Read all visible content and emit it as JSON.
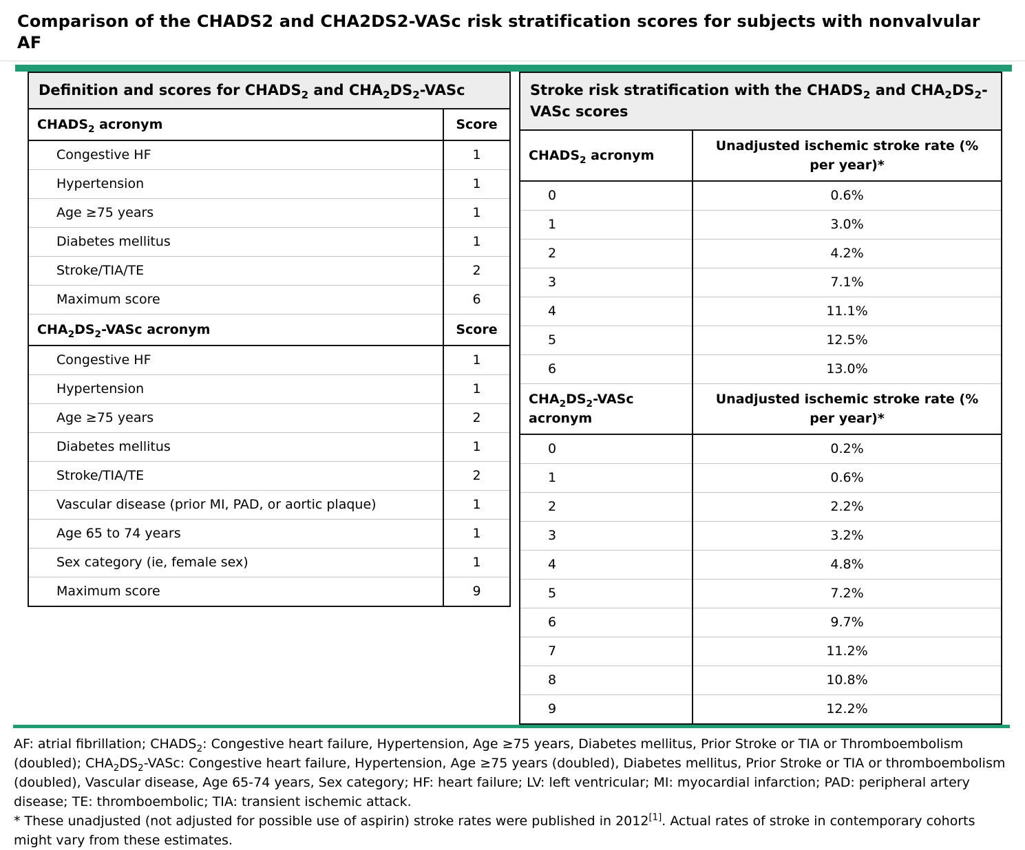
{
  "page": {
    "title": "Comparison of the CHADS2 and CHA2DS2-VASc risk stratification scores for subjects with nonvalvular AF"
  },
  "definition_table": {
    "title": "Definition and scores for CHADS~2~ and CHA~2~DS~2~-VASc",
    "sections": [
      {
        "header_col1": "CHADS~2~ acronym",
        "header_col2": "Score",
        "rows": [
          {
            "label": "Congestive HF",
            "value": "1"
          },
          {
            "label": "Hypertension",
            "value": "1"
          },
          {
            "label": "Age ≥75 years",
            "value": "1"
          },
          {
            "label": "Diabetes mellitus",
            "value": "1"
          },
          {
            "label": "Stroke/TIA/TE",
            "value": "2"
          },
          {
            "label": "Maximum score",
            "value": "6"
          }
        ]
      },
      {
        "header_col1": "CHA~2~DS~2~-VASc acronym",
        "header_col2": "Score",
        "rows": [
          {
            "label": "Congestive HF",
            "value": "1"
          },
          {
            "label": "Hypertension",
            "value": "1"
          },
          {
            "label": "Age ≥75 years",
            "value": "2"
          },
          {
            "label": "Diabetes mellitus",
            "value": "1"
          },
          {
            "label": "Stroke/TIA/TE",
            "value": "2"
          },
          {
            "label": "Vascular disease (prior MI, PAD, or aortic plaque)",
            "value": "1"
          },
          {
            "label": "Age 65 to 74 years",
            "value": "1"
          },
          {
            "label": "Sex category (ie, female sex)",
            "value": "1"
          },
          {
            "label": "Maximum score",
            "value": "9"
          }
        ]
      }
    ]
  },
  "risk_table": {
    "title": "Stroke risk stratification with the CHADS~2~ and CHA~2~DS~2~-VASc scores",
    "sections": [
      {
        "header_col1": "CHADS~2~ acronym",
        "header_col2": "Unadjusted ischemic stroke rate (% per year)*",
        "rows": [
          {
            "label": "0",
            "value": "0.6%"
          },
          {
            "label": "1",
            "value": "3.0%"
          },
          {
            "label": "2",
            "value": "4.2%"
          },
          {
            "label": "3",
            "value": "7.1%"
          },
          {
            "label": "4",
            "value": "11.1%"
          },
          {
            "label": "5",
            "value": "12.5%"
          },
          {
            "label": "6",
            "value": "13.0%"
          }
        ]
      },
      {
        "header_col1": "CHA~2~DS~2~-VASc acronym",
        "header_col2": "Unadjusted ischemic stroke rate (% per year)*",
        "rows": [
          {
            "label": "0",
            "value": "0.2%"
          },
          {
            "label": "1",
            "value": "0.6%"
          },
          {
            "label": "2",
            "value": "2.2%"
          },
          {
            "label": "3",
            "value": "3.2%"
          },
          {
            "label": "4",
            "value": "4.8%"
          },
          {
            "label": "5",
            "value": "7.2%"
          },
          {
            "label": "6",
            "value": "9.7%"
          },
          {
            "label": "7",
            "value": "11.2%"
          },
          {
            "label": "8",
            "value": "10.8%"
          },
          {
            "label": "9",
            "value": "12.2%"
          }
        ]
      }
    ]
  },
  "footnotes": {
    "abbreviations": "AF: atrial fibrillation; CHADS~2~: Congestive heart failure, Hypertension, Age ≥75 years, Diabetes mellitus, Prior Stroke or TIA or Thromboembolism (doubled); CHA~2~DS~2~-VASc: Congestive heart failure, Hypertension, Age ≥75 years (doubled), Diabetes mellitus, Prior Stroke or TIA or thromboembolism (doubled), Vascular disease, Age 65-74 years, Sex category; HF: heart failure; LV: left ventricular; MI: myocardial infarction; PAD: peripheral artery disease; TE: thromboembolic; TIA: transient ischemic attack.",
    "asterisk_note": "* These unadjusted (not adjusted for possible use of aspirin) stroke rates were published in 2012^[1]^. Actual rates of stroke in contemporary cohorts might vary from these estimates."
  },
  "colors": {
    "accent_green": "#219b73",
    "header_background": "#ededed",
    "row_divider": "#c4c4c4",
    "table_border": "#111111"
  }
}
